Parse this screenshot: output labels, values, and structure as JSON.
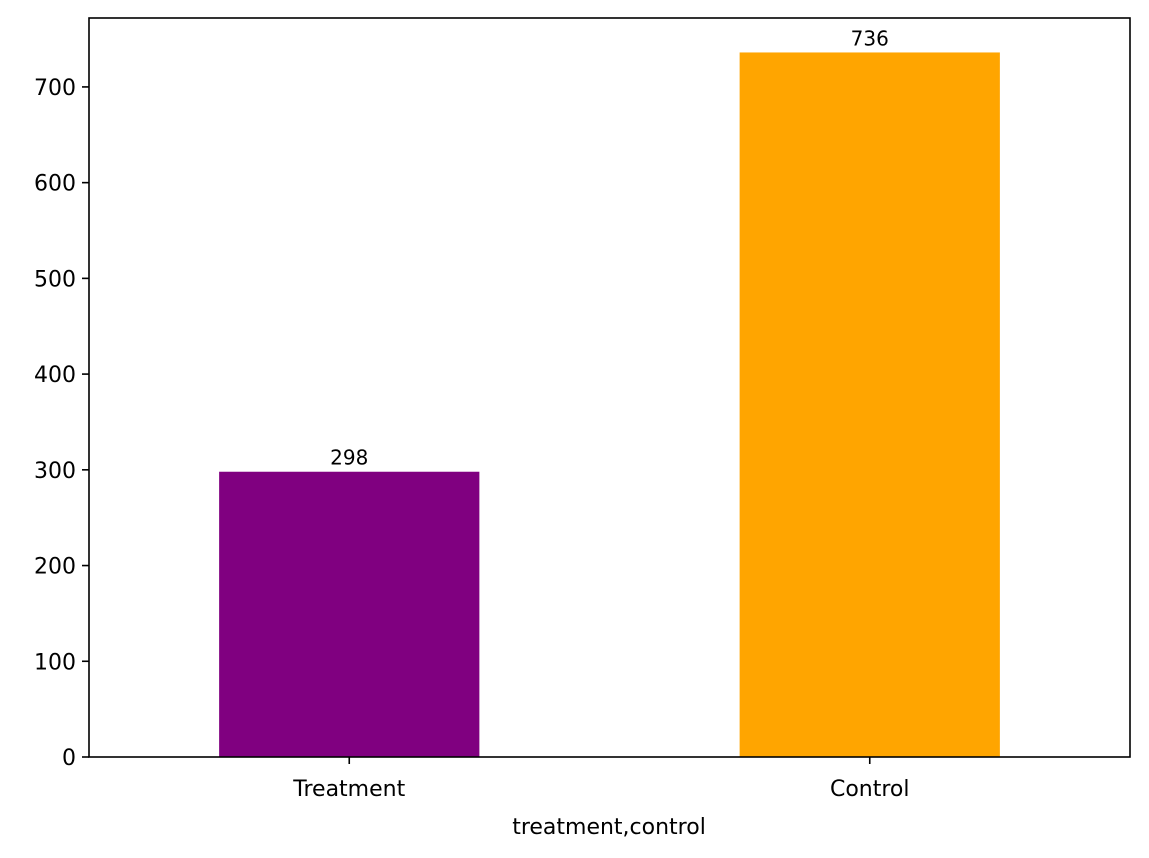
{
  "chart_data": {
    "type": "bar",
    "title": "",
    "xlabel": "treatment,control",
    "ylabel": "",
    "categories": [
      "Treatment",
      "Control"
    ],
    "values": [
      298,
      736
    ],
    "bar_labels": [
      "298",
      "736"
    ],
    "colors": [
      "#800080",
      "#ffa500"
    ],
    "ylim": [
      0,
      772
    ],
    "yticks": [
      0,
      100,
      200,
      300,
      400,
      500,
      600,
      700
    ],
    "grid": false,
    "legend": "none"
  }
}
